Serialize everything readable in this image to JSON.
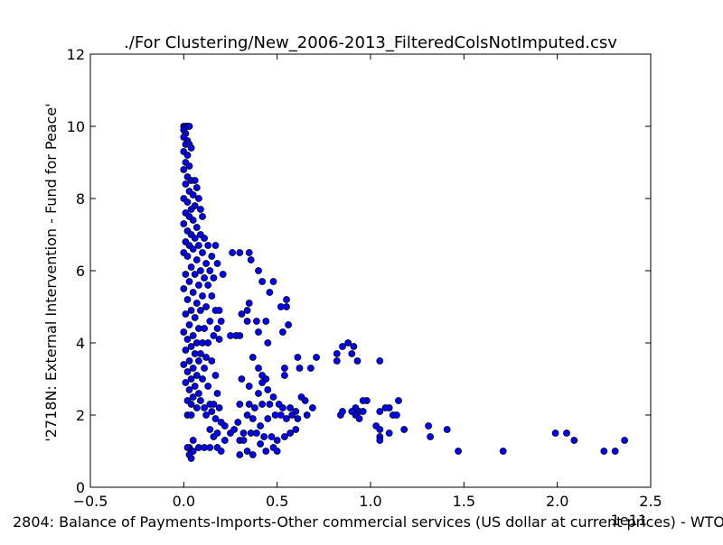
{
  "chart_data": {
    "type": "scatter",
    "title": "./For Clustering/New_2006-2013_FilteredColsNotImputed.csv",
    "xlabel": "2804: Balance of Payments-Imports-Other commercial services (US dollar at current prices) - WTO",
    "ylabel": "'2718N: External Intervention - Fund for Peace'",
    "x_offset_label": "1e11",
    "xlim": [
      -0.5,
      2.5
    ],
    "ylim": [
      0,
      12
    ],
    "xticks": [
      "−0.5",
      "0.0",
      "0.5",
      "1.0",
      "1.5",
      "2.0",
      "2.5"
    ],
    "xtick_values": [
      -0.5,
      0.0,
      0.5,
      1.0,
      1.5,
      2.0,
      2.5
    ],
    "yticks": [
      "0",
      "2",
      "4",
      "6",
      "8",
      "10",
      "12"
    ],
    "ytick_values": [
      0,
      2,
      4,
      6,
      8,
      10,
      12
    ],
    "grid": false,
    "marker_color": "#0000ff",
    "marker_edge": "#000000",
    "points": [
      [
        0.0,
        10.0
      ],
      [
        0.01,
        10.0
      ],
      [
        0.02,
        10.0
      ],
      [
        0.03,
        10.0
      ],
      [
        0.0,
        9.9
      ],
      [
        0.01,
        9.8
      ],
      [
        0.0,
        9.7
      ],
      [
        0.02,
        9.6
      ],
      [
        0.01,
        9.5
      ],
      [
        0.03,
        9.5
      ],
      [
        0.04,
        9.4
      ],
      [
        0.0,
        9.3
      ],
      [
        0.02,
        9.2
      ],
      [
        0.01,
        9.0
      ],
      [
        0.03,
        8.9
      ],
      [
        0.0,
        8.8
      ],
      [
        0.02,
        8.6
      ],
      [
        0.04,
        8.5
      ],
      [
        0.06,
        8.5
      ],
      [
        0.01,
        8.4
      ],
      [
        0.07,
        8.3
      ],
      [
        0.03,
        8.2
      ],
      [
        0.05,
        8.1
      ],
      [
        0.0,
        8.0
      ],
      [
        0.08,
        8.0
      ],
      [
        0.02,
        7.9
      ],
      [
        0.06,
        7.8
      ],
      [
        0.04,
        7.7
      ],
      [
        0.09,
        7.7
      ],
      [
        0.01,
        7.6
      ],
      [
        0.03,
        7.5
      ],
      [
        0.1,
        7.5
      ],
      [
        0.05,
        7.4
      ],
      [
        0.0,
        7.3
      ],
      [
        0.07,
        7.2
      ],
      [
        0.02,
        7.1
      ],
      [
        0.04,
        7.0
      ],
      [
        0.09,
        7.0
      ],
      [
        0.06,
        6.9
      ],
      [
        0.11,
        6.9
      ],
      [
        0.01,
        6.8
      ],
      [
        0.03,
        6.7
      ],
      [
        0.08,
        6.7
      ],
      [
        0.13,
        6.7
      ],
      [
        0.17,
        6.7
      ],
      [
        0.05,
        6.6
      ],
      [
        0.0,
        6.5
      ],
      [
        0.1,
        6.5
      ],
      [
        0.15,
        6.4
      ],
      [
        0.02,
        6.4
      ],
      [
        0.07,
        6.3
      ],
      [
        0.12,
        6.2
      ],
      [
        0.18,
        6.2
      ],
      [
        0.04,
        6.1
      ],
      [
        0.09,
        6.0
      ],
      [
        0.14,
        6.0
      ],
      [
        0.01,
        5.9
      ],
      [
        0.06,
        5.9
      ],
      [
        0.11,
        5.8
      ],
      [
        0.16,
        5.8
      ],
      [
        0.21,
        5.9
      ],
      [
        0.03,
        5.7
      ],
      [
        0.08,
        5.6
      ],
      [
        0.13,
        5.6
      ],
      [
        0.0,
        5.5
      ],
      [
        0.05,
        5.4
      ],
      [
        0.1,
        5.3
      ],
      [
        0.15,
        5.3
      ],
      [
        0.02,
        5.2
      ],
      [
        0.07,
        5.1
      ],
      [
        0.12,
        5.0
      ],
      [
        0.04,
        4.9
      ],
      [
        0.09,
        4.9
      ],
      [
        0.17,
        4.9
      ],
      [
        0.19,
        4.9
      ],
      [
        0.01,
        4.8
      ],
      [
        0.06,
        4.7
      ],
      [
        0.14,
        4.6
      ],
      [
        0.2,
        4.6
      ],
      [
        0.03,
        4.5
      ],
      [
        0.08,
        4.4
      ],
      [
        0.11,
        4.4
      ],
      [
        0.0,
        4.3
      ],
      [
        0.05,
        4.2
      ],
      [
        0.16,
        4.2
      ],
      [
        0.18,
        4.4
      ],
      [
        0.02,
        4.1
      ],
      [
        0.07,
        4.0
      ],
      [
        0.1,
        4.0
      ],
      [
        0.13,
        4.0
      ],
      [
        0.04,
        3.9
      ],
      [
        0.19,
        4.1
      ],
      [
        0.01,
        3.8
      ],
      [
        0.06,
        3.7
      ],
      [
        0.09,
        3.7
      ],
      [
        0.12,
        3.6
      ],
      [
        0.03,
        3.5
      ],
      [
        0.08,
        3.5
      ],
      [
        0.15,
        3.5
      ],
      [
        0.0,
        3.4
      ],
      [
        0.05,
        3.3
      ],
      [
        0.11,
        3.3
      ],
      [
        0.02,
        3.2
      ],
      [
        0.07,
        3.1
      ],
      [
        0.17,
        3.1
      ],
      [
        0.04,
        3.0
      ],
      [
        0.1,
        3.0
      ],
      [
        0.01,
        2.9
      ],
      [
        0.06,
        2.8
      ],
      [
        0.13,
        2.8
      ],
      [
        0.03,
        2.7
      ],
      [
        0.08,
        2.6
      ],
      [
        0.18,
        2.6
      ],
      [
        0.05,
        2.5
      ],
      [
        0.02,
        2.4
      ],
      [
        0.09,
        2.4
      ],
      [
        0.04,
        2.3
      ],
      [
        0.14,
        2.3
      ],
      [
        0.16,
        2.3
      ],
      [
        0.07,
        2.2
      ],
      [
        0.11,
        2.2
      ],
      [
        0.19,
        2.2
      ],
      [
        0.02,
        2.0
      ],
      [
        0.04,
        2.0
      ],
      [
        0.12,
        2.0
      ],
      [
        0.15,
        2.1
      ],
      [
        0.17,
        1.9
      ],
      [
        0.2,
        1.8
      ],
      [
        0.14,
        1.6
      ],
      [
        0.18,
        1.5
      ],
      [
        0.16,
        1.4
      ],
      [
        0.22,
        1.7
      ],
      [
        0.03,
        1.1
      ],
      [
        0.02,
        1.1
      ],
      [
        0.04,
        1.0
      ],
      [
        0.05,
        1.0
      ],
      [
        0.03,
        0.9
      ],
      [
        0.04,
        0.8
      ],
      [
        0.05,
        1.3
      ],
      [
        0.08,
        1.1
      ],
      [
        0.11,
        1.1
      ],
      [
        0.14,
        1.1
      ],
      [
        0.18,
        1.1
      ],
      [
        0.2,
        1.0
      ],
      [
        0.22,
        1.3
      ],
      [
        0.25,
        1.5
      ],
      [
        0.27,
        1.6
      ],
      [
        0.25,
        4.2
      ],
      [
        0.28,
        4.2
      ],
      [
        0.3,
        4.2
      ],
      [
        0.26,
        6.5
      ],
      [
        0.3,
        6.5
      ],
      [
        0.35,
        6.5
      ],
      [
        0.36,
        6.3
      ],
      [
        0.4,
        6.0
      ],
      [
        0.42,
        5.7
      ],
      [
        0.48,
        5.7
      ],
      [
        0.46,
        5.4
      ],
      [
        0.52,
        5.0
      ],
      [
        0.55,
        5.0
      ],
      [
        0.55,
        5.2
      ],
      [
        0.35,
        5.1
      ],
      [
        0.34,
        4.9
      ],
      [
        0.31,
        4.8
      ],
      [
        0.34,
        4.6
      ],
      [
        0.39,
        4.6
      ],
      [
        0.44,
        4.6
      ],
      [
        0.56,
        4.5
      ],
      [
        0.53,
        4.3
      ],
      [
        0.4,
        4.3
      ],
      [
        0.45,
        4.0
      ],
      [
        0.37,
        3.6
      ],
      [
        0.4,
        3.3
      ],
      [
        0.42,
        3.1
      ],
      [
        0.44,
        3.0
      ],
      [
        0.42,
        2.9
      ],
      [
        0.45,
        2.7
      ],
      [
        0.4,
        2.6
      ],
      [
        0.48,
        2.5
      ],
      [
        0.31,
        3.0
      ],
      [
        0.35,
        2.8
      ],
      [
        0.54,
        3.3
      ],
      [
        0.54,
        3.1
      ],
      [
        0.62,
        3.3
      ],
      [
        0.61,
        3.6
      ],
      [
        0.68,
        3.3
      ],
      [
        0.71,
        3.6
      ],
      [
        0.63,
        2.5
      ],
      [
        0.65,
        2.4
      ],
      [
        0.3,
        2.3
      ],
      [
        0.35,
        2.3
      ],
      [
        0.38,
        2.2
      ],
      [
        0.42,
        2.3
      ],
      [
        0.46,
        2.3
      ],
      [
        0.51,
        2.3
      ],
      [
        0.53,
        2.2
      ],
      [
        0.57,
        2.2
      ],
      [
        0.6,
        2.1
      ],
      [
        0.66,
        2.0
      ],
      [
        0.69,
        2.2
      ],
      [
        0.34,
        2.0
      ],
      [
        0.37,
        1.9
      ],
      [
        0.41,
        1.7
      ],
      [
        0.45,
        1.9
      ],
      [
        0.49,
        2.0
      ],
      [
        0.52,
        2.0
      ],
      [
        0.55,
        1.9
      ],
      [
        0.58,
        2.0
      ],
      [
        0.61,
        1.9
      ],
      [
        0.29,
        1.8
      ],
      [
        0.32,
        1.5
      ],
      [
        0.36,
        1.5
      ],
      [
        0.39,
        1.5
      ],
      [
        0.43,
        1.4
      ],
      [
        0.47,
        1.4
      ],
      [
        0.5,
        1.3
      ],
      [
        0.54,
        1.4
      ],
      [
        0.57,
        1.5
      ],
      [
        0.6,
        1.6
      ],
      [
        0.3,
        1.3
      ],
      [
        0.32,
        1.3
      ],
      [
        0.34,
        1.0
      ],
      [
        0.37,
        0.9
      ],
      [
        0.41,
        1.2
      ],
      [
        0.44,
        1.0
      ],
      [
        0.48,
        1.1
      ],
      [
        0.5,
        1.0
      ],
      [
        0.3,
        0.9
      ],
      [
        0.82,
        3.7
      ],
      [
        0.82,
        3.5
      ],
      [
        0.85,
        3.9
      ],
      [
        0.88,
        4.0
      ],
      [
        0.9,
        3.7
      ],
      [
        0.91,
        3.9
      ],
      [
        0.93,
        3.5
      ],
      [
        0.98,
        2.4
      ],
      [
        0.96,
        2.4
      ],
      [
        0.92,
        2.2
      ],
      [
        0.94,
        2.1
      ],
      [
        0.96,
        2.1
      ],
      [
        0.92,
        2.0
      ],
      [
        0.9,
        2.1
      ],
      [
        0.94,
        1.9
      ],
      [
        0.84,
        2.0
      ],
      [
        0.85,
        2.1
      ],
      [
        1.05,
        3.5
      ],
      [
        1.05,
        2.1
      ],
      [
        1.08,
        2.2
      ],
      [
        1.1,
        2.2
      ],
      [
        1.12,
        2.0
      ],
      [
        1.14,
        2.0
      ],
      [
        1.15,
        2.4
      ],
      [
        1.03,
        1.7
      ],
      [
        1.05,
        1.6
      ],
      [
        1.05,
        1.4
      ],
      [
        1.05,
        1.3
      ],
      [
        1.1,
        1.5
      ],
      [
        1.18,
        1.6
      ],
      [
        1.31,
        1.7
      ],
      [
        1.32,
        1.4
      ],
      [
        1.41,
        1.6
      ],
      [
        1.47,
        1.0
      ],
      [
        1.71,
        1.0
      ],
      [
        1.99,
        1.5
      ],
      [
        2.05,
        1.5
      ],
      [
        2.09,
        1.3
      ],
      [
        2.25,
        1.0
      ],
      [
        2.31,
        1.0
      ],
      [
        2.36,
        1.3
      ]
    ]
  }
}
